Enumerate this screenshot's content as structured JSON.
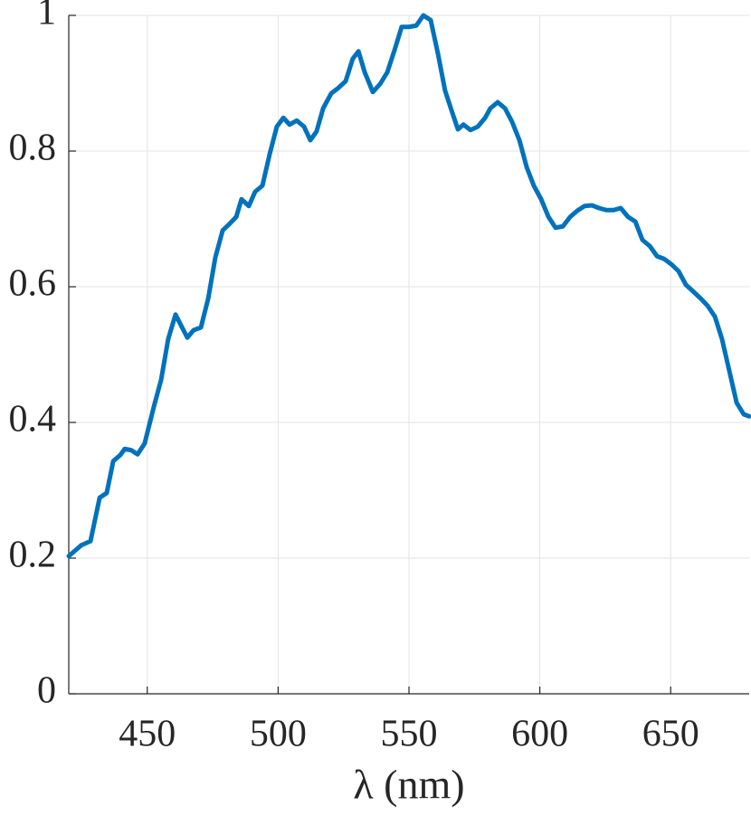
{
  "chart_data": {
    "type": "line",
    "xlabel": "λ (nm)",
    "x": [
      420,
      424.8,
      428.3,
      431.8,
      434.5,
      437,
      439.7,
      441.4,
      443.9,
      446.3,
      449,
      452.5,
      455.3,
      458,
      460.8,
      462.9,
      465.3,
      467.7,
      470.5,
      473.3,
      476,
      478.8,
      481.5,
      484,
      486,
      488.8,
      491.2,
      494,
      496.8,
      499.5,
      502,
      504.4,
      507.1,
      509.9,
      512.3,
      514.7,
      517.2,
      520.3,
      523,
      525.8,
      528.5,
      530.7,
      533.1,
      536.2,
      539,
      541.7,
      544.5,
      547.2,
      550,
      552.8,
      555.5,
      558.3,
      561.1,
      563.8,
      566.6,
      568.7,
      570.8,
      573.5,
      576.3,
      579.1,
      581.1,
      583.9,
      586.7,
      589.4,
      592.2,
      595,
      597.7,
      600.5,
      603.3,
      606,
      608.8,
      611.6,
      614.3,
      617.1,
      619.9,
      622.6,
      625.4,
      628.2,
      630.9,
      633.7,
      636.5,
      639.2,
      642,
      644.8,
      647.5,
      650.3,
      653,
      655.8,
      658.6,
      661.4,
      664.1,
      666.9,
      669.6,
      672.4,
      675.2,
      677.9,
      680
    ],
    "values": [
      0.203,
      0.219,
      0.225,
      0.289,
      0.296,
      0.343,
      0.352,
      0.361,
      0.359,
      0.353,
      0.369,
      0.423,
      0.463,
      0.523,
      0.559,
      0.543,
      0.525,
      0.536,
      0.54,
      0.583,
      0.643,
      0.683,
      0.693,
      0.703,
      0.729,
      0.719,
      0.74,
      0.749,
      0.796,
      0.836,
      0.849,
      0.839,
      0.845,
      0.836,
      0.816,
      0.829,
      0.863,
      0.885,
      0.893,
      0.903,
      0.936,
      0.947,
      0.916,
      0.887,
      0.899,
      0.916,
      0.949,
      0.983,
      0.983,
      0.985,
      1.0,
      0.993,
      0.943,
      0.889,
      0.856,
      0.832,
      0.839,
      0.831,
      0.836,
      0.849,
      0.863,
      0.872,
      0.863,
      0.843,
      0.816,
      0.776,
      0.749,
      0.729,
      0.703,
      0.687,
      0.689,
      0.703,
      0.712,
      0.719,
      0.72,
      0.716,
      0.713,
      0.713,
      0.716,
      0.703,
      0.696,
      0.669,
      0.66,
      0.645,
      0.641,
      0.633,
      0.623,
      0.603,
      0.593,
      0.583,
      0.572,
      0.556,
      0.523,
      0.476,
      0.429,
      0.412,
      0.409
    ],
    "color": "#0072bd",
    "xlim": [
      420,
      680
    ],
    "xticks": [
      450,
      500,
      550,
      600,
      650
    ],
    "ylim": [
      0,
      1
    ],
    "yticks": [
      0,
      0.2,
      0.4,
      0.6,
      0.8,
      1
    ],
    "grid": true
  }
}
